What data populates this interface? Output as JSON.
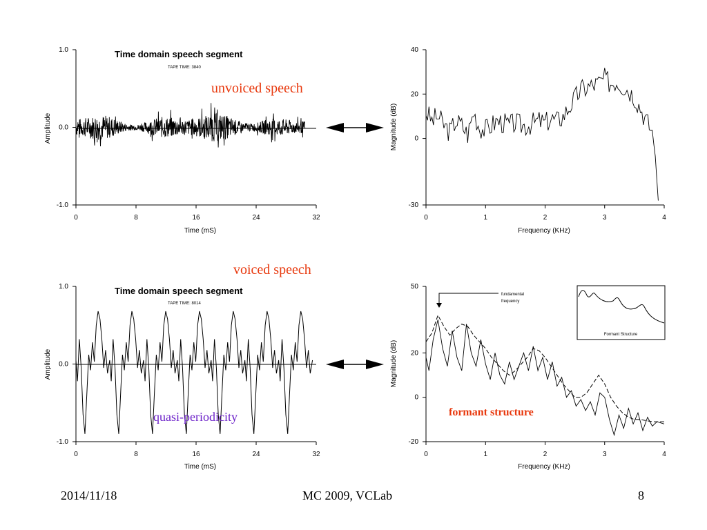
{
  "labels": {
    "unvoiced": "unvoiced speech",
    "voiced": "voiced speech",
    "quasi": "quasi-periodicity",
    "formant": "formant structure"
  },
  "colors": {
    "red": "#e8380d",
    "purple": "#6a1ec8"
  },
  "footer": {
    "date": "2014/11/18",
    "center": "MC 2009, VCLab",
    "page": "8"
  },
  "chart_data": [
    {
      "id": "unvoiced-time",
      "type": "line",
      "title": "Time domain speech segment",
      "subtitle": "TAPE TIME: 3840",
      "xlabel": "Time (mS)",
      "ylabel": "Amplitude",
      "xlim": [
        0,
        32
      ],
      "ylim": [
        -1.0,
        1.0
      ],
      "xticks": [
        "0",
        "8",
        "16",
        "24",
        "32"
      ],
      "yticks": [
        "1.0",
        "0.0",
        "-1.0"
      ],
      "signal": "noise",
      "signal_xlim": [
        0,
        30.5
      ],
      "amplitude": 0.16
    },
    {
      "id": "unvoiced-spectrum",
      "type": "line",
      "xlabel": "Frequency (KHz)",
      "ylabel": "Magnitude (dB)",
      "xlim": [
        0,
        4
      ],
      "ylim": [
        -30,
        40
      ],
      "xticks": [
        "0",
        "1",
        "2",
        "3",
        "4"
      ],
      "yticks": [
        "40",
        "20",
        "0",
        "-30"
      ],
      "series": [
        {
          "x": [
            0,
            0.1,
            0.2,
            0.3,
            0.4,
            0.5,
            0.6,
            0.7,
            0.8,
            0.9,
            1.0,
            1.1,
            1.2,
            1.3,
            1.4,
            1.5,
            1.6,
            1.7,
            1.8,
            1.9,
            2.0,
            2.1,
            2.2,
            2.3,
            2.4,
            2.5,
            2.6,
            2.7,
            2.8,
            2.9,
            3.0,
            3.1,
            3.2,
            3.3,
            3.4,
            3.5,
            3.6,
            3.7,
            3.8,
            3.85,
            3.9
          ],
          "y": [
            12,
            8,
            10,
            6,
            3,
            8,
            6,
            2,
            12,
            5,
            4,
            6,
            8,
            7,
            6,
            7,
            6,
            6,
            7,
            8,
            7,
            9,
            8,
            10,
            14,
            18,
            22,
            23,
            24,
            25,
            27,
            25,
            26,
            24,
            22,
            19,
            14,
            8,
            3,
            -8,
            -28
          ]
        }
      ]
    },
    {
      "id": "voiced-time",
      "type": "line",
      "title": "Time domain speech segment",
      "subtitle": "TAPE TIME: 8014",
      "xlabel": "Time (mS)",
      "ylabel": "Amplitude",
      "xlim": [
        0,
        32
      ],
      "ylim": [
        -1.0,
        1.0
      ],
      "xticks": [
        "0",
        "8",
        "16",
        "24",
        "32"
      ],
      "yticks": [
        "1.0",
        "0.0",
        "-1.0"
      ],
      "signal": "periodic",
      "period": 4.5,
      "series": [
        {
          "x": [
            0,
            0.2,
            0.45,
            0.7,
            0.95,
            1.2,
            1.45,
            1.7,
            1.95,
            2.2,
            2.45,
            2.7,
            2.95,
            3.2,
            3.45,
            3.7,
            3.95,
            4.2,
            4.5
          ],
          "y": [
            0.05,
            -0.22,
            0.32,
            -0.05,
            -0.65,
            -0.9,
            -0.38,
            0.12,
            -0.08,
            0.28,
            0.03,
            0.5,
            0.68,
            0.58,
            0.32,
            -0.05,
            0.18,
            -0.12,
            0.05
          ]
        }
      ]
    },
    {
      "id": "voiced-spectrum",
      "type": "line",
      "xlabel": "Frequency (KHz)",
      "ylabel": "Magnitude (dB)",
      "xlim": [
        0,
        4
      ],
      "ylim": [
        -20,
        50
      ],
      "xticks": [
        "0",
        "1",
        "2",
        "3",
        "4"
      ],
      "yticks": [
        "50",
        "20",
        "0",
        "-20"
      ],
      "annotation": "fundamental frequency",
      "inset_label": "Formant Structure",
      "series": [
        {
          "style": "solid",
          "x": [
            0,
            0.05,
            0.12,
            0.2,
            0.28,
            0.36,
            0.44,
            0.52,
            0.6,
            0.68,
            0.76,
            0.84,
            0.92,
            1.0,
            1.08,
            1.16,
            1.24,
            1.32,
            1.4,
            1.48,
            1.56,
            1.64,
            1.72,
            1.8,
            1.88,
            1.96,
            2.04,
            2.12,
            2.2,
            2.28,
            2.36,
            2.44,
            2.52,
            2.6,
            2.68,
            2.76,
            2.84,
            2.92,
            3.0,
            3.08,
            3.16,
            3.24,
            3.32,
            3.4,
            3.48,
            3.56,
            3.64,
            3.72,
            3.8,
            3.88,
            4.0
          ],
          "y": [
            18,
            12,
            26,
            35,
            22,
            14,
            30,
            18,
            12,
            33,
            20,
            14,
            26,
            15,
            8,
            20,
            10,
            6,
            16,
            8,
            14,
            20,
            12,
            23,
            12,
            18,
            8,
            16,
            5,
            9,
            0,
            3,
            -4,
            -1,
            -6,
            -2,
            -8,
            2,
            0,
            -10,
            -17,
            -8,
            -14,
            -5,
            -12,
            -7,
            -15,
            -9,
            -13,
            -11,
            -12
          ]
        },
        {
          "style": "dashed",
          "x": [
            0,
            0.1,
            0.2,
            0.3,
            0.4,
            0.5,
            0.6,
            0.7,
            0.8,
            0.9,
            1.0,
            1.1,
            1.2,
            1.3,
            1.4,
            1.5,
            1.6,
            1.7,
            1.8,
            1.9,
            2.0,
            2.1,
            2.2,
            2.3,
            2.4,
            2.5,
            2.6,
            2.7,
            2.8,
            2.9,
            3.0,
            3.1,
            3.2,
            3.3,
            3.4,
            3.5,
            3.6,
            3.7,
            3.8,
            3.9,
            4.0
          ],
          "y": [
            25,
            29,
            37,
            32,
            28,
            31,
            33,
            32,
            28,
            25,
            22,
            18,
            15,
            12,
            10,
            12,
            15,
            18,
            22,
            21,
            18,
            14,
            10,
            6,
            3,
            0,
            0,
            2,
            6,
            10,
            6,
            0,
            -4,
            -7,
            -9,
            -10,
            -10,
            -10.5,
            -11,
            -11,
            -11
          ]
        }
      ]
    }
  ]
}
